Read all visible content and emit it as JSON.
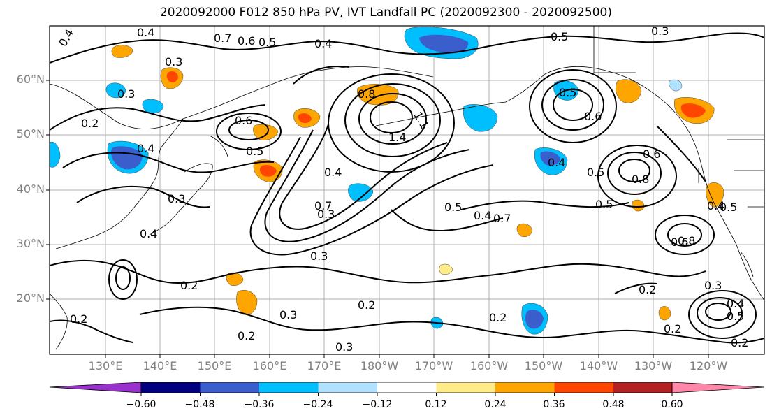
{
  "title": "2020092000 F012 850 hPa PV, IVT Landfall PC (2020092300 - 2020092500)",
  "lat_ticks": [
    "60°N",
    "50°N",
    "40°N",
    "30°N",
    "20°N"
  ],
  "lon_ticks": [
    "130°E",
    "140°E",
    "150°E",
    "160°E",
    "170°E",
    "180°W",
    "170°W",
    "160°W",
    "150°W",
    "140°W",
    "130°W",
    "120°W"
  ],
  "colorbar": {
    "labels": [
      "−0.60",
      "−0.48",
      "−0.36",
      "−0.24",
      "−0.12",
      "0.12",
      "0.24",
      "0.36",
      "0.48",
      "0.60"
    ],
    "colors": [
      "#9932cc",
      "#000080",
      "#3a5fcd",
      "#00bfff",
      "#b0e2ff",
      "#ffffff",
      "#ffeb88",
      "#ffa500",
      "#ff4500",
      "#b22222",
      "#ff88aa"
    ]
  },
  "contour_labels": [
    {
      "text": "0.4"
    },
    {
      "text": "0.4"
    },
    {
      "text": "0.6"
    },
    {
      "text": "0.5"
    },
    {
      "text": "0.4"
    },
    {
      "text": "0.5"
    },
    {
      "text": "0.3"
    },
    {
      "text": "0.7"
    },
    {
      "text": "0.3"
    },
    {
      "text": "0.3"
    },
    {
      "text": "0.8"
    },
    {
      "text": "1.1"
    },
    {
      "text": "1.4"
    },
    {
      "text": "0.5"
    },
    {
      "text": "0.6"
    },
    {
      "text": "0.2"
    },
    {
      "text": "0.4"
    },
    {
      "text": "0.6"
    },
    {
      "text": "0.5"
    },
    {
      "text": "0.7"
    },
    {
      "text": "0.3"
    },
    {
      "text": "0.4"
    },
    {
      "text": "0.4"
    },
    {
      "text": "0.5"
    },
    {
      "text": "0.6"
    },
    {
      "text": "0.8"
    },
    {
      "text": "0.5"
    },
    {
      "text": "0.4"
    },
    {
      "text": "0.3"
    },
    {
      "text": "0.7"
    },
    {
      "text": "0.6"
    },
    {
      "text": "0.5"
    },
    {
      "text": "0.4"
    },
    {
      "text": "0.5"
    },
    {
      "text": "0.8"
    },
    {
      "text": "0.4"
    },
    {
      "text": "0.3"
    },
    {
      "text": "0.2"
    },
    {
      "text": "0.2"
    },
    {
      "text": "0.3"
    },
    {
      "text": "0.2"
    },
    {
      "text": "0.2"
    },
    {
      "text": "0.2"
    },
    {
      "text": "0.3"
    },
    {
      "text": "0.2"
    },
    {
      "text": "0.3"
    },
    {
      "text": "0.4"
    },
    {
      "text": "0.5"
    },
    {
      "text": "0.2"
    },
    {
      "text": "0.2"
    }
  ],
  "colors": {
    "pos_fill": "#ffa500",
    "pos_light": "#ffeb88",
    "pos_strong": "#ff4500",
    "neg_fill": "#00bfff",
    "neg_light": "#b0e2ff",
    "neg_strong": "#3a5fcd",
    "grid": "#b0b0b0",
    "contour": "#000000"
  }
}
